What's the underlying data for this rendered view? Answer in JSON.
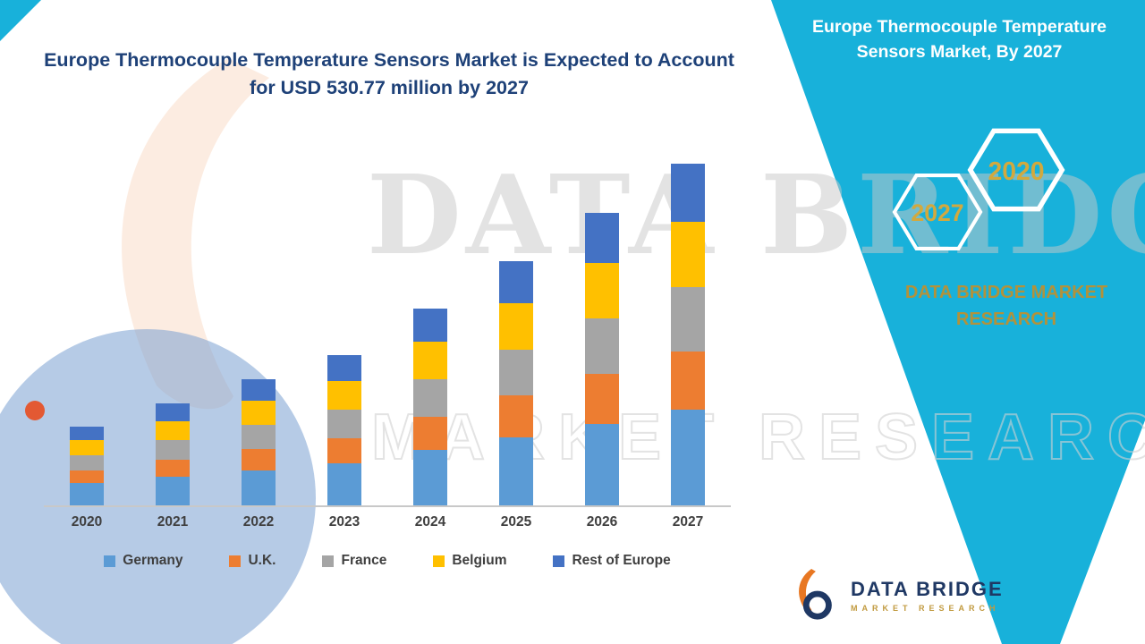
{
  "page": {
    "title_line1": "Europe Thermocouple Temperature Sensors Market is Expected to Account",
    "title_line2": "for USD 530.77 million by 2027"
  },
  "band": {
    "color": "#18b1da",
    "title_line1": "Europe Thermocouple Temperature",
    "title_line2": "Sensors Market, By 2027",
    "badge_2027": "2027",
    "badge_2020": "2020",
    "badge_text_color": "#d2a93e",
    "brand_line1": "DATA BRIDGE MARKET",
    "brand_line2": "RESEARCH",
    "brand_color": "#b2923b"
  },
  "watermark": {
    "big_text": "DATA BRIDGE",
    "outline_text": "MARKET RESEARCH"
  },
  "logo": {
    "name": "DATA BRIDGE",
    "subtitle": "MARKET RESEARCH"
  },
  "chart_data": {
    "type": "bar",
    "stacked": true,
    "title": "Europe Thermocouple Temperature Sensors Market is Expected to Account for USD 530.77 million by 2027",
    "unit": "USD million",
    "categories": [
      "2020",
      "2021",
      "2022",
      "2023",
      "2024",
      "2025",
      "2026",
      "2027"
    ],
    "series": [
      {
        "name": "Germany",
        "color": "#5B9BD5",
        "values": [
          34.2,
          44.2,
          54.9,
          65.2,
          85.7,
          106.1,
          127.1,
          148.6
        ]
      },
      {
        "name": "U.K.",
        "color": "#ED7D31",
        "values": [
          20.7,
          26.9,
          33.3,
          39.6,
          52.0,
          64.4,
          77.2,
          90.2
        ]
      },
      {
        "name": "France",
        "color": "#A5A5A5",
        "values": [
          23.2,
          30.0,
          37.2,
          44.3,
          58.1,
          72.0,
          86.3,
          100.8
        ]
      },
      {
        "name": "Belgium",
        "color": "#FFC000",
        "values": [
          23.2,
          30.0,
          37.2,
          44.3,
          58.1,
          72.0,
          86.3,
          100.8
        ]
      },
      {
        "name": "Rest of Europe",
        "color": "#4472C4",
        "values": [
          20.7,
          26.9,
          33.3,
          39.6,
          52.0,
          64.4,
          77.2,
          90.37
        ]
      }
    ],
    "totals": [
      122.0,
      158.0,
      195.9,
      233.0,
      305.9,
      378.9,
      454.1,
      530.77
    ],
    "ylim": [
      0,
      540
    ],
    "grid": false,
    "y_axis_labels": false,
    "legend_position": "bottom"
  }
}
